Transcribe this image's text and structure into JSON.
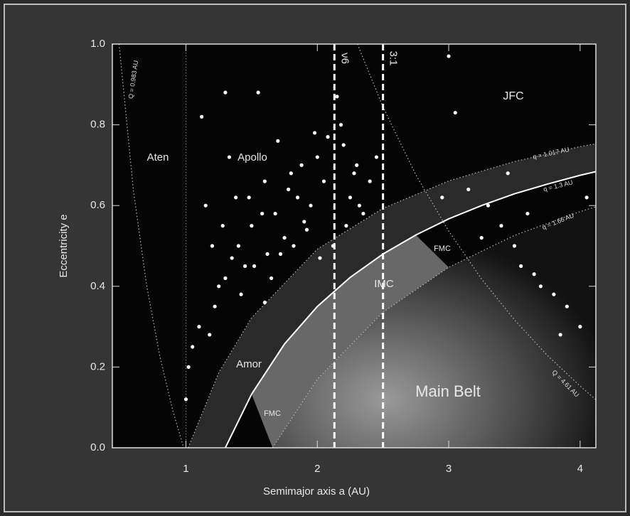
{
  "chart_data": {
    "type": "scatter",
    "xlabel": "Semimajor axis a (AU)",
    "ylabel": "Eccentricity e",
    "xlim": [
      0.44,
      4.12
    ],
    "ylim": [
      0,
      1
    ],
    "xticks": [
      1,
      2,
      3,
      4
    ],
    "yticks": [
      {
        "value": 0,
        "label": "0.0"
      },
      {
        "value": 0.2,
        "label": "0.2"
      },
      {
        "value": 0.4,
        "label": "0.4"
      },
      {
        "value": 0.6,
        "label": "0.6"
      },
      {
        "value": 0.8,
        "label": "0.8"
      },
      {
        "value": 1,
        "label": "1.0"
      }
    ],
    "points": {
      "color": "#ffffff",
      "x": [
        1.12,
        1.15,
        1.2,
        1.25,
        1.3,
        1.33,
        1.38,
        1.4,
        1.45,
        1.5,
        1.55,
        1.6,
        1.62,
        1.68,
        1.7,
        1.75,
        1.8,
        1.85,
        1.9,
        1.95,
        2.0,
        2.05,
        2.08,
        2.15,
        2.2,
        2.25,
        2.3,
        2.35,
        2.4,
        2.45,
        1.22,
        1.3,
        1.42,
        1.52,
        1.6,
        1.72,
        1.82,
        1.92,
        2.02,
        2.12,
        2.22,
        2.32,
        1.28,
        1.48,
        1.58,
        1.78,
        1.88,
        1.98,
        2.18,
        2.28,
        1.1,
        1.18,
        1.35,
        1.65,
        3.0,
        3.05,
        3.15,
        3.3,
        3.4,
        3.5,
        3.55,
        3.6,
        3.7,
        3.8,
        3.9,
        4.0,
        4.05,
        3.45,
        3.25,
        3.65,
        2.95,
        3.85,
        1.0,
        1.02,
        1.05
      ],
      "y": [
        0.82,
        0.6,
        0.5,
        0.4,
        0.88,
        0.72,
        0.62,
        0.5,
        0.45,
        0.55,
        0.88,
        0.66,
        0.48,
        0.58,
        0.76,
        0.52,
        0.68,
        0.62,
        0.56,
        0.6,
        0.72,
        0.66,
        0.77,
        0.87,
        0.75,
        0.62,
        0.7,
        0.58,
        0.66,
        0.72,
        0.35,
        0.42,
        0.38,
        0.45,
        0.36,
        0.48,
        0.5,
        0.54,
        0.47,
        0.5,
        0.55,
        0.6,
        0.55,
        0.62,
        0.58,
        0.64,
        0.7,
        0.78,
        0.8,
        0.68,
        0.3,
        0.28,
        0.47,
        0.42,
        0.97,
        0.83,
        0.64,
        0.6,
        0.55,
        0.5,
        0.45,
        0.58,
        0.4,
        0.38,
        0.35,
        0.3,
        0.62,
        0.68,
        0.52,
        0.43,
        0.62,
        0.28,
        0.12,
        0.2,
        0.25
      ]
    },
    "curves": [
      {
        "label": "q = 1.3 AU",
        "style": "solid",
        "x": [
          1.3,
          1.5,
          1.75,
          2,
          2.25,
          2.5,
          2.75,
          3,
          3.25,
          3.5,
          3.75,
          4,
          4.12
        ],
        "y": [
          0,
          0.133,
          0.257,
          0.35,
          0.422,
          0.48,
          0.527,
          0.567,
          0.6,
          0.629,
          0.653,
          0.675,
          0.684
        ]
      },
      {
        "label": "q = 1.017 AU",
        "style": "dotted",
        "x": [
          1.017,
          1.25,
          1.5,
          2,
          2.5,
          3,
          3.5,
          4,
          4.12
        ],
        "y": [
          0,
          0.186,
          0.322,
          0.492,
          0.593,
          0.661,
          0.709,
          0.746,
          0.753
        ]
      },
      {
        "label": "q = 1.66 AU",
        "style": "dotted",
        "x": [
          1.66,
          2,
          2.5,
          3,
          3.5,
          4,
          4.12
        ],
        "y": [
          0,
          0.17,
          0.336,
          0.447,
          0.526,
          0.585,
          0.597
        ]
      },
      {
        "label": "Q = 4.61 AU",
        "style": "dotted",
        "x": [
          2.305,
          2.5,
          2.75,
          3,
          3.25,
          3.5,
          3.75,
          4,
          4.12
        ],
        "y": [
          1,
          0.844,
          0.676,
          0.537,
          0.418,
          0.317,
          0.229,
          0.153,
          0.119
        ]
      },
      {
        "label": "Q = 0.983 AU",
        "style": "dotted",
        "x": [
          0.4915,
          0.6,
          0.7,
          0.8,
          0.9,
          0.983
        ],
        "y": [
          1,
          0.638,
          0.404,
          0.229,
          0.092,
          0
        ]
      }
    ],
    "dotted_x": [
      1
    ],
    "resonances": [
      {
        "label": "ν6",
        "x": 2.13
      },
      {
        "label": "3:1",
        "x": 2.5
      }
    ],
    "annotations": [
      "Aten",
      "Apollo",
      "Amor",
      "JFC",
      "IMC",
      "FMC",
      "FMC",
      "Main Belt"
    ]
  }
}
